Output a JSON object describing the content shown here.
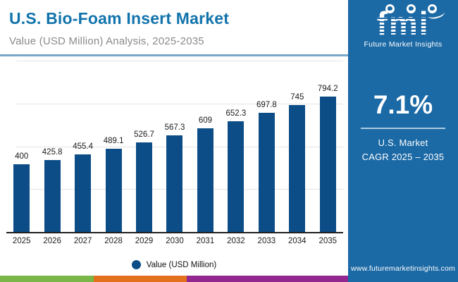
{
  "header": {
    "title": "U.S. Bio-Foam Insert Market",
    "subtitle": "Value (USD Million) Analysis, 2025-2035"
  },
  "chart_data": {
    "type": "bar",
    "title": "U.S. Bio-Foam Insert Market",
    "subtitle": "Value (USD Million) Analysis, 2025-2035",
    "categories": [
      "2025",
      "2026",
      "2027",
      "2028",
      "2029",
      "2030",
      "2031",
      "2032",
      "2033",
      "2034",
      "2035"
    ],
    "values": [
      400,
      425.8,
      455.4,
      489.1,
      526.7,
      567.3,
      609,
      652.3,
      697.8,
      745,
      794.2
    ],
    "xlabel": "",
    "ylabel": "Value (USD Million)",
    "ylim": [
      0,
      1000
    ],
    "gridline_step": 250,
    "grid": true,
    "bar_color": "#0d4d87",
    "legend": {
      "label": "Value (USD Million)",
      "position": "bottom",
      "marker": "circle"
    }
  },
  "legend": {
    "label": "Value (USD Million)"
  },
  "side_panel": {
    "logo": {
      "text": "fmi",
      "caption": "Future Market Insights",
      "icons": [
        "globe-americas-icon",
        "globe-europe-icon",
        "globe-asia-icon"
      ]
    },
    "stat": {
      "value": "7.1%",
      "label_line1": "U.S. Market",
      "label_line2": "CAGR 2025 – 2035"
    },
    "website": "www.futuremarketinsights.com"
  },
  "footer_strip": {
    "colors": [
      "#7ab648",
      "#e2701d",
      "#92278f"
    ]
  },
  "colors": {
    "title_blue": "#1173ab",
    "subtitle_gray": "#8a8a8a",
    "bar_navy": "#0d4d87",
    "panel_blue": "#1b69a5",
    "header_underline": "#7ba7c7",
    "gridline": "#e3e3e3",
    "axis": "#1f1f1f",
    "strip_green": "#7ab648",
    "strip_orange": "#e2701d",
    "strip_purple": "#92278f"
  }
}
